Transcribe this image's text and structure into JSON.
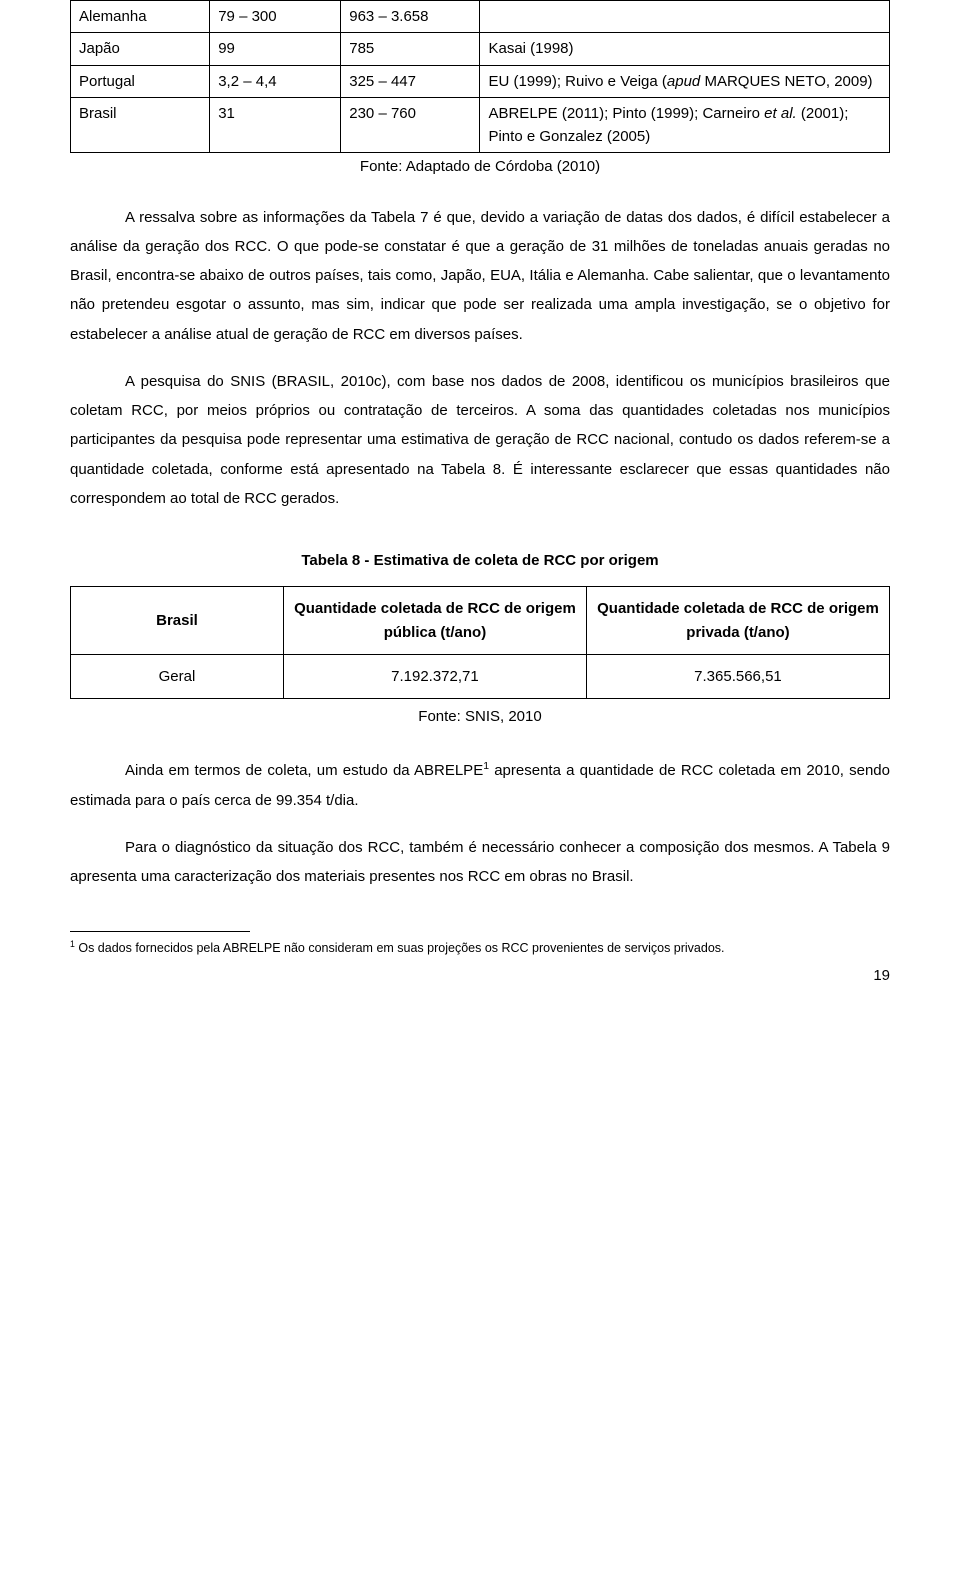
{
  "table1": {
    "rows": [
      {
        "c0": "Alemanha",
        "c1": "79 – 300",
        "c2": "963 – 3.658",
        "c3": ""
      },
      {
        "c0": "Japão",
        "c1": "99",
        "c2": "785",
        "c3": "Kasai (1998)"
      },
      {
        "c0": "Portugal",
        "c1": "3,2 – 4,4",
        "c2": "325 – 447",
        "c3_pre": "EU (1999); Ruivo e Veiga (",
        "c3_ital": "apud",
        "c3_post": " MARQUES NETO, 2009)",
        "multiline": true
      },
      {
        "c0": "Brasil",
        "c1": "31",
        "c2": "230 – 760",
        "c3_pre": "ABRELPE (2011); Pinto (1999); Carneiro ",
        "c3_ital": "et al.",
        "c3_post": " (2001); Pinto e Gonzalez (2005)",
        "multiline": true
      }
    ],
    "fonte": "Fonte: Adaptado de Córdoba (2010)"
  },
  "paragraphs": {
    "p1": "A ressalva sobre as informações da Tabela 7 é que, devido a variação de datas dos dados, é difícil estabelecer a análise da geração dos RCC. O que pode-se constatar é que a geração de 31 milhões de toneladas anuais geradas no Brasil, encontra-se abaixo de outros países, tais como, Japão, EUA, Itália e Alemanha. Cabe salientar, que o levantamento não pretendeu esgotar o assunto, mas sim, indicar que pode ser realizada uma ampla investigação, se o objetivo for estabelecer a análise atual de geração de RCC em diversos países.",
    "p2": "A pesquisa do SNIS (BRASIL, 2010c), com base nos dados de 2008, identificou os municípios brasileiros que coletam RCC, por meios próprios ou contratação de terceiros. A soma das quantidades coletadas nos municípios participantes da pesquisa pode representar uma estimativa de geração de RCC nacional, contudo os dados referem-se a quantidade coletada, conforme está apresentado na Tabela 8. É interessante esclarecer que essas quantidades não correspondem ao total de RCC gerados.",
    "p3_pre": "Ainda em termos de coleta, um estudo da ABRELPE",
    "p3_sup": "1",
    "p3_post": " apresenta a quantidade de RCC coletada em 2010, sendo estimada para o país cerca de 99.354 t/dia.",
    "p4": "Para o diagnóstico da situação dos RCC, também é necessário conhecer a composição dos mesmos. A Tabela 9 apresenta uma caracterização dos materiais presentes nos RCC em obras no Brasil."
  },
  "table2": {
    "caption": "Tabela 8 - Estimativa de coleta de RCC por origem",
    "header": {
      "a": "Brasil",
      "b": "Quantidade coletada de RCC de origem pública (t/ano)",
      "c": "Quantidade coletada de RCC de origem privada (t/ano)"
    },
    "row": {
      "a": "Geral",
      "b": "7.192.372,71",
      "c": "7.365.566,51"
    },
    "fonte": "Fonte: SNIS, 2010"
  },
  "footnote": {
    "marker": "1",
    "text": " Os dados fornecidos pela ABRELPE não consideram em suas projeções os RCC provenientes de serviços privados."
  },
  "page_number": "19"
}
